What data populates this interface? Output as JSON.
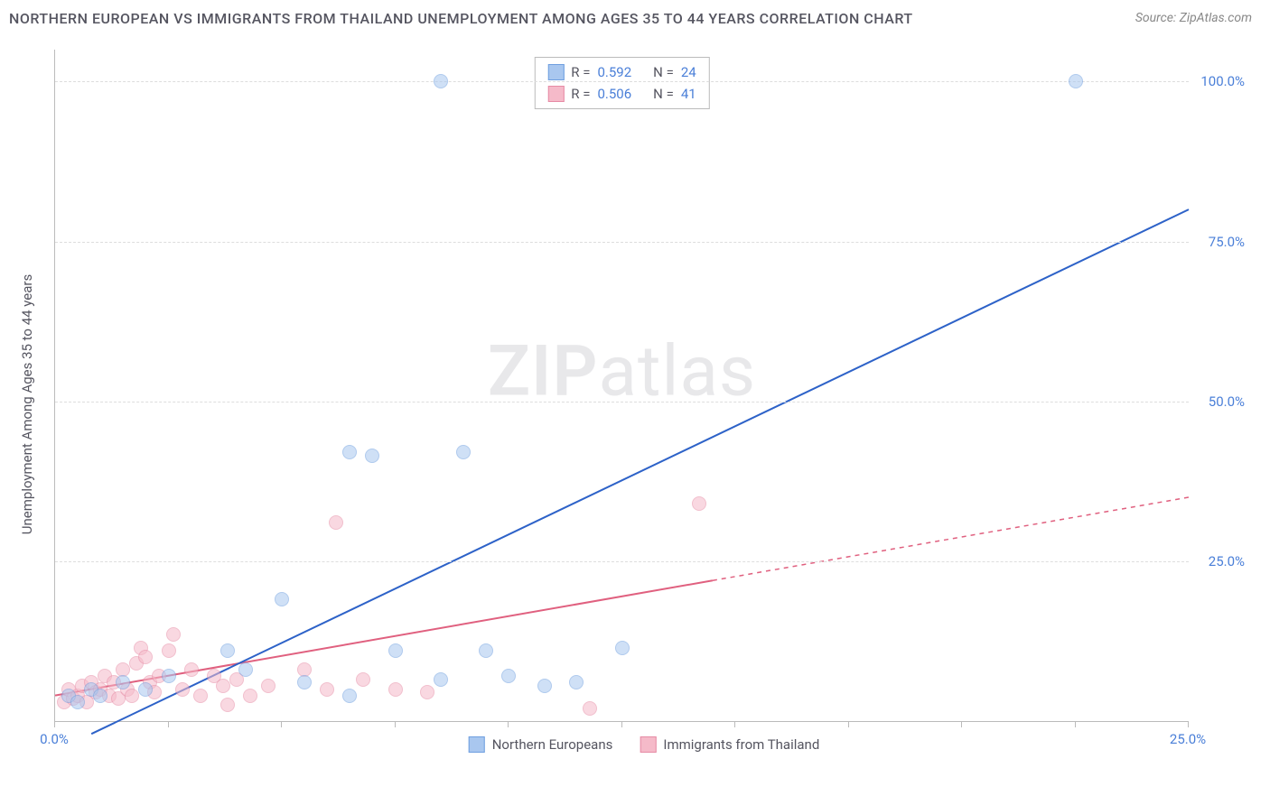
{
  "title": "NORTHERN EUROPEAN VS IMMIGRANTS FROM THAILAND UNEMPLOYMENT AMONG AGES 35 TO 44 YEARS CORRELATION CHART",
  "source": "Source: ZipAtlas.com",
  "y_axis_label": "Unemployment Among Ages 35 to 44 years",
  "watermark_a": "ZIP",
  "watermark_b": "atlas",
  "chart": {
    "type": "scatter",
    "xlim": [
      0,
      25
    ],
    "ylim": [
      0,
      105
    ],
    "x_ticks": [
      0,
      2.5,
      5,
      7.5,
      10,
      12.5,
      15,
      17.5,
      20,
      22.5,
      25
    ],
    "x_tick_labels": {
      "0": "0.0%",
      "25": "25.0%"
    },
    "y_ticks": [
      25,
      50,
      75,
      100
    ],
    "y_tick_labels": {
      "25": "25.0%",
      "50": "50.0%",
      "75": "75.0%",
      "100": "100.0%"
    },
    "background_color": "#ffffff",
    "grid_color": "#dddddd",
    "axis_color": "#bbbbbb",
    "tick_label_color": "#4a7fd8",
    "marker_radius": 8,
    "marker_opacity": 0.55,
    "series": {
      "a": {
        "label": "Northern Europeans",
        "color_fill": "#a9c7ef",
        "color_stroke": "#6f9fe0",
        "r": "0.592",
        "n": "24",
        "trend": {
          "x1": 0.8,
          "y1": -2,
          "x2": 25,
          "y2": 80,
          "solid_end_x": 25,
          "width": 2
        },
        "points": [
          [
            0.3,
            4
          ],
          [
            0.5,
            3
          ],
          [
            0.8,
            5
          ],
          [
            1.0,
            4
          ],
          [
            1.5,
            6
          ],
          [
            2.0,
            5
          ],
          [
            2.5,
            7
          ],
          [
            3.8,
            11
          ],
          [
            5.0,
            19
          ],
          [
            4.2,
            8
          ],
          [
            5.5,
            6
          ],
          [
            6.5,
            4
          ],
          [
            7.5,
            11
          ],
          [
            8.5,
            6.5
          ],
          [
            9.5,
            11
          ],
          [
            10.0,
            7
          ],
          [
            10.8,
            5.5
          ],
          [
            11.5,
            6
          ],
          [
            12.5,
            11.5
          ],
          [
            6.5,
            42
          ],
          [
            7.0,
            41.5
          ],
          [
            8.5,
            100
          ],
          [
            9.0,
            42
          ],
          [
            22.5,
            100
          ]
        ]
      },
      "b": {
        "label": "Immigrants from Thailand",
        "color_fill": "#f5bac9",
        "color_stroke": "#e68ba5",
        "r": "0.506",
        "n": "41",
        "trend": {
          "x1": 0,
          "y1": 4,
          "x2": 25,
          "y2": 35,
          "solid_end_x": 14.5,
          "width": 2
        },
        "points": [
          [
            0.2,
            3
          ],
          [
            0.3,
            5
          ],
          [
            0.4,
            3.5
          ],
          [
            0.5,
            4
          ],
          [
            0.6,
            5.5
          ],
          [
            0.7,
            3
          ],
          [
            0.8,
            6
          ],
          [
            0.9,
            4.5
          ],
          [
            1.0,
            5
          ],
          [
            1.1,
            7
          ],
          [
            1.2,
            4
          ],
          [
            1.3,
            6
          ],
          [
            1.4,
            3.5
          ],
          [
            1.5,
            8
          ],
          [
            1.6,
            5
          ],
          [
            1.7,
            4
          ],
          [
            1.8,
            9
          ],
          [
            1.9,
            11.5
          ],
          [
            2.0,
            10
          ],
          [
            2.1,
            6
          ],
          [
            2.2,
            4.5
          ],
          [
            2.3,
            7
          ],
          [
            2.5,
            11
          ],
          [
            2.6,
            13.5
          ],
          [
            2.8,
            5
          ],
          [
            3.0,
            8
          ],
          [
            3.2,
            4
          ],
          [
            3.5,
            7
          ],
          [
            3.7,
            5.5
          ],
          [
            3.8,
            2.5
          ],
          [
            4.0,
            6.5
          ],
          [
            4.3,
            4
          ],
          [
            4.7,
            5.5
          ],
          [
            5.5,
            8
          ],
          [
            6.0,
            5
          ],
          [
            6.2,
            31
          ],
          [
            6.8,
            6.5
          ],
          [
            7.5,
            5
          ],
          [
            8.2,
            4.5
          ],
          [
            11.8,
            2
          ],
          [
            14.2,
            34
          ]
        ]
      }
    }
  },
  "stats_legend": {
    "r_label": "R  =",
    "n_label": "N  ="
  }
}
